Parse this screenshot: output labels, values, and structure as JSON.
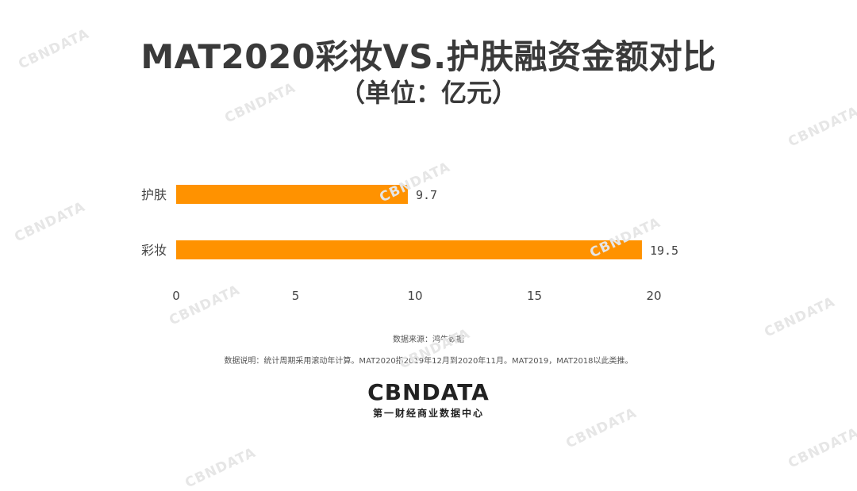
{
  "title": "MAT2020彩妆VS.护肤融资金额对比",
  "subtitle": "（单位：亿元）",
  "chart_data": {
    "type": "bar",
    "orientation": "horizontal",
    "categories": [
      "护肤",
      "彩妆"
    ],
    "values": [
      9.7,
      19.5
    ],
    "value_labels": [
      "9.7",
      "19.5"
    ],
    "xlim": [
      0,
      20
    ],
    "xticks": [
      0,
      5,
      10,
      15,
      20
    ],
    "grid": false,
    "bar_color": "#ff9200"
  },
  "source": "数据来源：鸿牛数据",
  "note": "数据说明：统计周期采用滚动年计算。MAT2020指2019年12月到2020年11月。MAT2019，MAT2018以此类推。",
  "logo": {
    "name": "CBNDATA",
    "tagline": "第一财经商业数据中心"
  },
  "watermark": "CBNDATA"
}
